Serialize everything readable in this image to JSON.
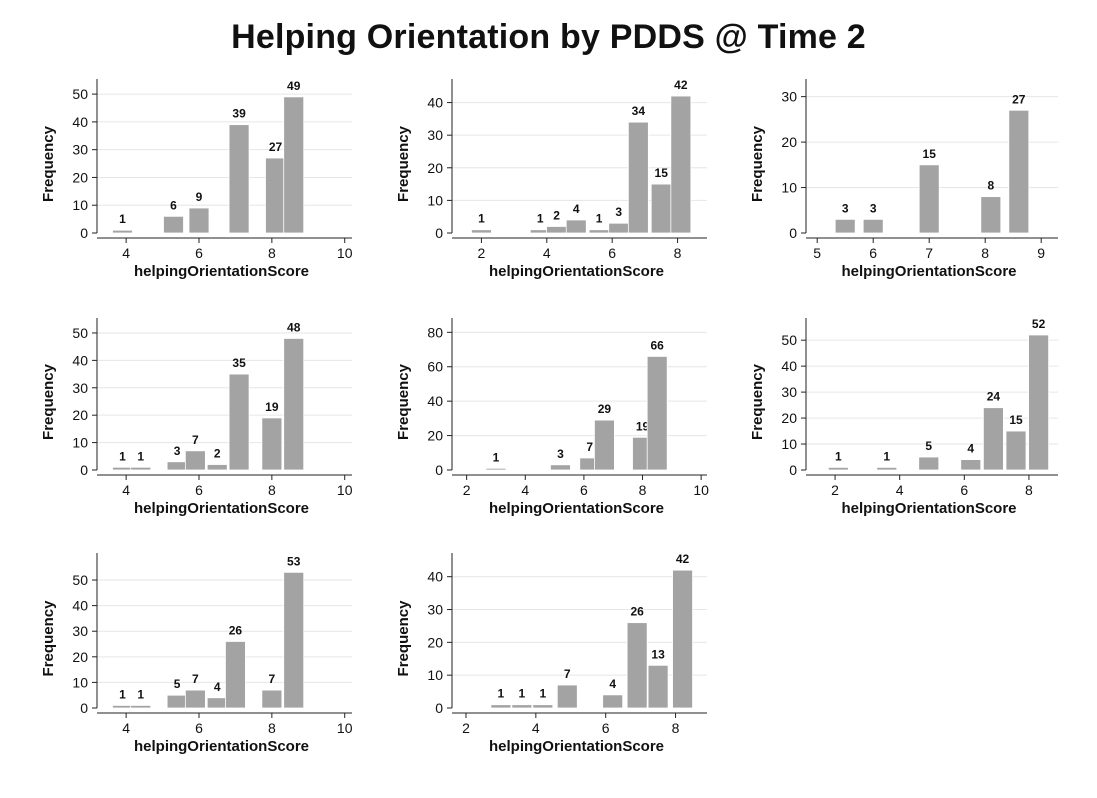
{
  "title": "Helping Orientation by PDDS @ Time 2",
  "chart_data": [
    {
      "type": "bar",
      "xlabel": "helpingOrientationScore",
      "ylabel": "Frequency",
      "xlim": [
        3.2,
        10.2
      ],
      "xticks": [
        4,
        6,
        8,
        10
      ],
      "ylim": [
        0,
        54
      ],
      "yticks": [
        0,
        10,
        20,
        30,
        40,
        50
      ],
      "bars": [
        {
          "x": 3.9,
          "y": 1
        },
        {
          "x": 5.3,
          "y": 6
        },
        {
          "x": 6.0,
          "y": 9
        },
        {
          "x": 7.1,
          "y": 39
        },
        {
          "x": 8.1,
          "y": 27
        },
        {
          "x": 8.6,
          "y": 49
        }
      ]
    },
    {
      "type": "bar",
      "xlabel": "helpingOrientationScore",
      "ylabel": "Frequency",
      "xlim": [
        1.1,
        8.9
      ],
      "xticks": [
        2,
        4,
        6,
        8
      ],
      "ylim": [
        0,
        46
      ],
      "yticks": [
        0,
        10,
        20,
        30,
        40
      ],
      "bars": [
        {
          "x": 2.0,
          "y": 1
        },
        {
          "x": 3.8,
          "y": 1
        },
        {
          "x": 4.3,
          "y": 2
        },
        {
          "x": 4.9,
          "y": 4
        },
        {
          "x": 5.6,
          "y": 1
        },
        {
          "x": 6.2,
          "y": 3
        },
        {
          "x": 6.8,
          "y": 34
        },
        {
          "x": 7.5,
          "y": 15
        },
        {
          "x": 8.1,
          "y": 42
        }
      ]
    },
    {
      "type": "bar",
      "xlabel": "helpingOrientationScore",
      "ylabel": "Frequency",
      "xlim": [
        4.8,
        9.3
      ],
      "xticks": [
        5,
        6,
        7,
        8,
        9
      ],
      "ylim": [
        0,
        33
      ],
      "yticks": [
        0,
        10,
        20,
        30
      ],
      "bars": [
        {
          "x": 5.5,
          "y": 3
        },
        {
          "x": 6.0,
          "y": 3
        },
        {
          "x": 7.0,
          "y": 15
        },
        {
          "x": 8.1,
          "y": 8
        },
        {
          "x": 8.6,
          "y": 27
        }
      ]
    },
    {
      "type": "bar",
      "xlabel": "helpingOrientationScore",
      "ylabel": "Frequency",
      "xlim": [
        3.2,
        10.2
      ],
      "xticks": [
        4,
        6,
        8,
        10
      ],
      "ylim": [
        0,
        54
      ],
      "yticks": [
        0,
        10,
        20,
        30,
        40,
        50
      ],
      "bars": [
        {
          "x": 3.9,
          "y": 1
        },
        {
          "x": 4.4,
          "y": 1
        },
        {
          "x": 5.4,
          "y": 3
        },
        {
          "x": 5.9,
          "y": 7
        },
        {
          "x": 6.5,
          "y": 2
        },
        {
          "x": 7.1,
          "y": 35
        },
        {
          "x": 8.0,
          "y": 19
        },
        {
          "x": 8.6,
          "y": 48
        }
      ]
    },
    {
      "type": "bar",
      "xlabel": "helpingOrientationScore",
      "ylabel": "Frequency",
      "xlim": [
        1.5,
        10.2
      ],
      "xticks": [
        2,
        4,
        6,
        8,
        10
      ],
      "ylim": [
        0,
        86
      ],
      "yticks": [
        0,
        20,
        40,
        60,
        80
      ],
      "bars": [
        {
          "x": 3.0,
          "y": 1
        },
        {
          "x": 5.2,
          "y": 3
        },
        {
          "x": 6.2,
          "y": 7
        },
        {
          "x": 6.7,
          "y": 29
        },
        {
          "x": 8.0,
          "y": 19
        },
        {
          "x": 8.5,
          "y": 66
        }
      ]
    },
    {
      "type": "bar",
      "xlabel": "helpingOrientationScore",
      "ylabel": "Frequency",
      "xlim": [
        1.1,
        8.9
      ],
      "xticks": [
        2,
        4,
        6,
        8
      ],
      "ylim": [
        0,
        57
      ],
      "yticks": [
        0,
        10,
        20,
        30,
        40,
        50
      ],
      "bars": [
        {
          "x": 2.1,
          "y": 1
        },
        {
          "x": 3.6,
          "y": 1
        },
        {
          "x": 4.9,
          "y": 5
        },
        {
          "x": 6.2,
          "y": 4
        },
        {
          "x": 6.9,
          "y": 24
        },
        {
          "x": 7.6,
          "y": 15
        },
        {
          "x": 8.3,
          "y": 52
        }
      ]
    },
    {
      "type": "bar",
      "xlabel": "helpingOrientationScore",
      "ylabel": "Frequency",
      "xlim": [
        3.2,
        10.2
      ],
      "xticks": [
        4,
        6,
        8,
        10
      ],
      "ylim": [
        0,
        59
      ],
      "yticks": [
        0,
        10,
        20,
        30,
        40,
        50
      ],
      "bars": [
        {
          "x": 3.9,
          "y": 1
        },
        {
          "x": 4.4,
          "y": 1
        },
        {
          "x": 5.4,
          "y": 5
        },
        {
          "x": 5.9,
          "y": 7
        },
        {
          "x": 6.5,
          "y": 4
        },
        {
          "x": 7.0,
          "y": 26
        },
        {
          "x": 8.0,
          "y": 7
        },
        {
          "x": 8.6,
          "y": 53
        }
      ]
    },
    {
      "type": "bar",
      "xlabel": "helpingOrientationScore",
      "ylabel": "Frequency",
      "xlim": [
        1.6,
        8.9
      ],
      "xticks": [
        2,
        4,
        6,
        8
      ],
      "ylim": [
        0,
        46
      ],
      "yticks": [
        0,
        10,
        20,
        30,
        40
      ],
      "bars": [
        {
          "x": 3.0,
          "y": 1
        },
        {
          "x": 3.6,
          "y": 1
        },
        {
          "x": 4.2,
          "y": 1
        },
        {
          "x": 4.9,
          "y": 7
        },
        {
          "x": 6.2,
          "y": 4
        },
        {
          "x": 6.9,
          "y": 26
        },
        {
          "x": 7.5,
          "y": 13
        },
        {
          "x": 8.2,
          "y": 42
        }
      ]
    }
  ]
}
